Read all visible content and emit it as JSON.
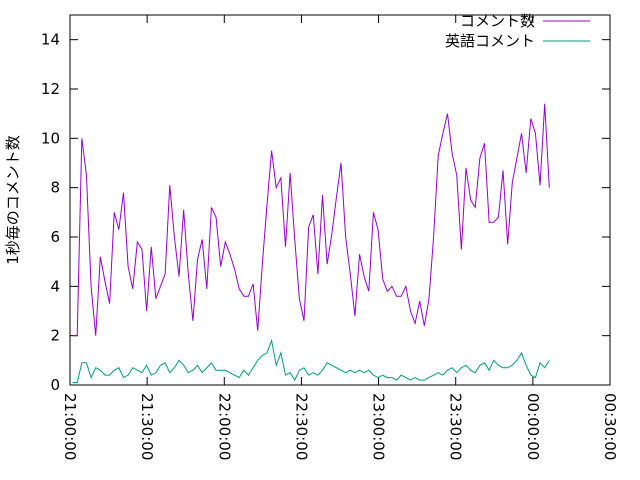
{
  "chart_data": {
    "type": "line",
    "ylabel": "1秒毎のコメント数",
    "xlim": [
      0,
      210
    ],
    "xticks": [
      {
        "value": 0,
        "label": "21:00:00"
      },
      {
        "value": 30,
        "label": "21:30:00"
      },
      {
        "value": 60,
        "label": "22:00:00"
      },
      {
        "value": 90,
        "label": "22:30:00"
      },
      {
        "value": 120,
        "label": "23:00:00"
      },
      {
        "value": 150,
        "label": "23:30:00"
      },
      {
        "value": 180,
        "label": "00:00:00"
      },
      {
        "value": 210,
        "label": "00:30:00"
      }
    ],
    "ylim": [
      0,
      15
    ],
    "yticks": [
      0,
      2,
      4,
      6,
      8,
      10,
      12,
      14
    ],
    "legend": "top-right",
    "x": [
      1,
      2.8,
      4.6,
      6.4,
      8.2,
      10,
      11.8,
      13.6,
      15.4,
      17.2,
      19,
      20.8,
      22.6,
      24.4,
      26.2,
      28,
      29.8,
      31.6,
      33.4,
      35.2,
      37,
      38.8,
      40.6,
      42.4,
      44.2,
      46,
      47.8,
      49.6,
      51.4,
      53.2,
      55,
      56.8,
      58.6,
      60.4,
      62.2,
      64,
      65.8,
      67.6,
      69.4,
      71.2,
      73,
      74.8,
      76.6,
      78.4,
      80.2,
      82,
      83.8,
      85.6,
      87.4,
      89.2,
      91,
      92.8,
      94.6,
      96.4,
      98.2,
      100,
      101.8,
      103.6,
      105.4,
      107.2,
      109,
      110.8,
      112.6,
      114.4,
      116.2,
      118,
      119.8,
      121.6,
      123.4,
      125.2,
      127,
      128.8,
      130.6,
      132.4,
      134.2,
      136,
      137.8,
      139.6,
      141.4,
      143.2,
      145,
      146.8,
      148.6,
      150.4,
      152.2,
      154,
      155.8,
      157.6,
      159.4,
      161.2,
      163,
      164.8,
      166.6,
      168.4,
      170.2,
      172,
      173.8,
      175.6,
      177.4,
      179.2,
      181,
      182.8,
      184.6,
      186.4
    ],
    "series": [
      {
        "name": "コメント数",
        "color": "#9400d3",
        "values": [
          2.0,
          2,
          10,
          8.5,
          4,
          2.0,
          5.2,
          4.2,
          3.3,
          7.0,
          6.3,
          7.8,
          4.8,
          3.9,
          5.8,
          5.5,
          3.0,
          5.6,
          3.5,
          4.0,
          4.5,
          8.1,
          6.0,
          4.4,
          7.1,
          4.5,
          2.6,
          5.1,
          5.9,
          3.9,
          7.2,
          6.8,
          4.8,
          5.8,
          5.3,
          4.7,
          3.9,
          3.6,
          3.6,
          4.1,
          2.2,
          4.9,
          7.3,
          9.5,
          8.0,
          8.4,
          5.6,
          8.6,
          5.9,
          3.5,
          2.6,
          6.4,
          6.9,
          4.5,
          7.7,
          4.9,
          6.1,
          7.6,
          9.0,
          6.0,
          4.5,
          2.8,
          5.3,
          4.4,
          3.8,
          7.0,
          6.3,
          4.3,
          3.8,
          4.0,
          3.6,
          3.6,
          4.0,
          3.0,
          2.5,
          3.4,
          2.4,
          3.5,
          6.0,
          9.3,
          10.2,
          11.0,
          9.4,
          8.5,
          5.5,
          8.8,
          7.5,
          7.2,
          9.2,
          9.8,
          6.6,
          6.6,
          6.8,
          8.7,
          5.7,
          8.2,
          9.2,
          10.2,
          8.6,
          10.8,
          10.2,
          8.1,
          11.4,
          8.0
        ]
      },
      {
        "name": "英語コメント",
        "color": "#009e73",
        "values": [
          0.1,
          0.1,
          0.9,
          0.9,
          0.3,
          0.7,
          0.6,
          0.4,
          0.4,
          0.6,
          0.7,
          0.3,
          0.4,
          0.7,
          0.6,
          0.5,
          0.8,
          0.4,
          0.5,
          0.8,
          0.9,
          0.5,
          0.7,
          1.0,
          0.8,
          0.5,
          0.6,
          0.8,
          0.5,
          0.7,
          0.9,
          0.6,
          0.6,
          0.6,
          0.5,
          0.4,
          0.3,
          0.6,
          0.4,
          0.7,
          1.0,
          1.2,
          1.3,
          1.8,
          0.8,
          1.3,
          0.4,
          0.5,
          0.2,
          0.6,
          0.7,
          0.4,
          0.5,
          0.4,
          0.6,
          0.9,
          0.8,
          0.7,
          0.6,
          0.5,
          0.6,
          0.5,
          0.6,
          0.5,
          0.6,
          0.4,
          0.3,
          0.4,
          0.3,
          0.3,
          0.2,
          0.4,
          0.3,
          0.2,
          0.3,
          0.2,
          0.2,
          0.3,
          0.4,
          0.5,
          0.4,
          0.6,
          0.7,
          0.5,
          0.7,
          0.8,
          0.6,
          0.5,
          0.8,
          0.9,
          0.6,
          1.0,
          0.8,
          0.7,
          0.7,
          0.8,
          1.0,
          1.3,
          0.8,
          0.4,
          0.3,
          0.9,
          0.7,
          1.0
        ]
      }
    ]
  }
}
